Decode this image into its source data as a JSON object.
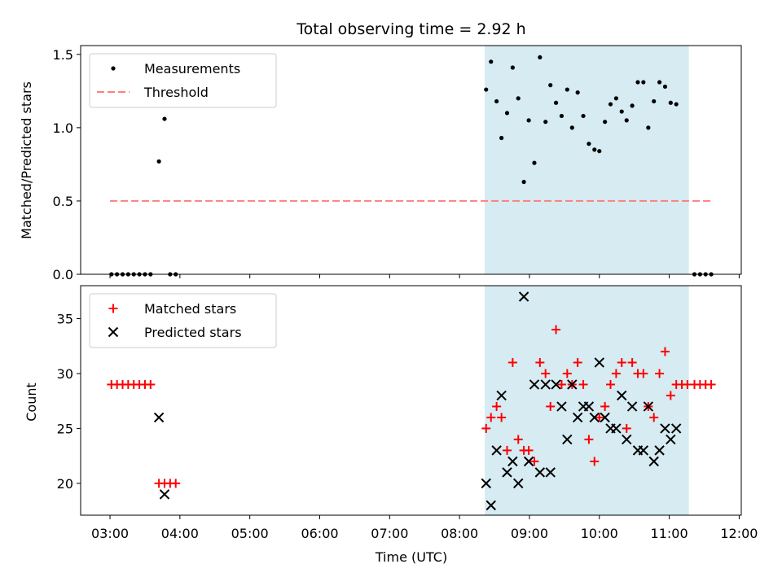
{
  "chart_data": {
    "title": "Total observing time = 2.92 h",
    "xlabel": "Time (UTC)",
    "x_unit": "hours UTC",
    "xlim": [
      2.58,
      12.03
    ],
    "x_ticks": [
      {
        "value": 3,
        "label": "03:00"
      },
      {
        "value": 4,
        "label": "04:00"
      },
      {
        "value": 5,
        "label": "05:00"
      },
      {
        "value": 6,
        "label": "06:00"
      },
      {
        "value": 7,
        "label": "07:00"
      },
      {
        "value": 8,
        "label": "08:00"
      },
      {
        "value": 9,
        "label": "09:00"
      },
      {
        "value": 10,
        "label": "10:00"
      },
      {
        "value": 11,
        "label": "11:00"
      },
      {
        "value": 12,
        "label": "12:00"
      }
    ],
    "shaded_interval": {
      "x": [
        8.36,
        11.28
      ],
      "color": "#add8e6"
    },
    "top": {
      "type": "scatter",
      "ylabel": "Matched/Predicted stars",
      "ylim": [
        0,
        1.56
      ],
      "y_ticks": [
        0.0,
        0.5,
        1.0,
        1.5
      ],
      "y_tick_labels": [
        "0.0",
        "0.5",
        "1.0",
        "1.5"
      ],
      "legend_position": "upper-left",
      "series": [
        {
          "name": "Measurements",
          "style": "dot",
          "color": "#000000",
          "points": [
            [
              3.02,
              0
            ],
            [
              3.1,
              0
            ],
            [
              3.18,
              0
            ],
            [
              3.26,
              0
            ],
            [
              3.34,
              0
            ],
            [
              3.42,
              0
            ],
            [
              3.5,
              0
            ],
            [
              3.58,
              0
            ],
            [
              3.7,
              0.77
            ],
            [
              3.78,
              1.06
            ],
            [
              3.86,
              0
            ],
            [
              3.94,
              0
            ],
            [
              8.38,
              1.26
            ],
            [
              8.45,
              1.45
            ],
            [
              8.53,
              1.18
            ],
            [
              8.6,
              0.93
            ],
            [
              8.68,
              1.1
            ],
            [
              8.76,
              1.41
            ],
            [
              8.84,
              1.2
            ],
            [
              8.92,
              0.63
            ],
            [
              8.99,
              1.05
            ],
            [
              9.07,
              0.76
            ],
            [
              9.15,
              1.48
            ],
            [
              9.23,
              1.04
            ],
            [
              9.3,
              1.29
            ],
            [
              9.38,
              1.17
            ],
            [
              9.46,
              1.08
            ],
            [
              9.54,
              1.26
            ],
            [
              9.61,
              1.0
            ],
            [
              9.69,
              1.24
            ],
            [
              9.77,
              1.08
            ],
            [
              9.85,
              0.89
            ],
            [
              9.93,
              0.85
            ],
            [
              10.0,
              0.84
            ],
            [
              10.08,
              1.04
            ],
            [
              10.16,
              1.16
            ],
            [
              10.24,
              1.2
            ],
            [
              10.32,
              1.11
            ],
            [
              10.39,
              1.05
            ],
            [
              10.47,
              1.15
            ],
            [
              10.55,
              1.31
            ],
            [
              10.63,
              1.31
            ],
            [
              10.7,
              1.0
            ],
            [
              10.78,
              1.18
            ],
            [
              10.86,
              1.31
            ],
            [
              10.94,
              1.28
            ],
            [
              11.02,
              1.17
            ],
            [
              11.1,
              1.16
            ],
            [
              11.36,
              0
            ],
            [
              11.44,
              0
            ],
            [
              11.52,
              0
            ],
            [
              11.6,
              0
            ]
          ]
        },
        {
          "name": "Threshold",
          "style": "dashed-line",
          "color": "#ff7f7f",
          "points": [
            [
              3.0,
              0.5
            ],
            [
              11.62,
              0.5
            ]
          ]
        }
      ]
    },
    "bottom": {
      "type": "scatter",
      "ylabel": "Count",
      "ylim": [
        17.1,
        38.0
      ],
      "y_ticks": [
        20,
        25,
        30,
        35
      ],
      "y_tick_labels": [
        "20",
        "25",
        "30",
        "35"
      ],
      "legend_position": "upper-left",
      "series": [
        {
          "name": "Matched stars",
          "marker": "plus",
          "color": "#ff0000",
          "points": [
            [
              3.02,
              29
            ],
            [
              3.1,
              29
            ],
            [
              3.18,
              29
            ],
            [
              3.26,
              29
            ],
            [
              3.34,
              29
            ],
            [
              3.42,
              29
            ],
            [
              3.5,
              29
            ],
            [
              3.58,
              29
            ],
            [
              3.7,
              20
            ],
            [
              3.78,
              20
            ],
            [
              3.86,
              20
            ],
            [
              3.94,
              20
            ],
            [
              8.38,
              25
            ],
            [
              8.45,
              26
            ],
            [
              8.53,
              27
            ],
            [
              8.6,
              26
            ],
            [
              8.68,
              23
            ],
            [
              8.76,
              31
            ],
            [
              8.84,
              24
            ],
            [
              8.92,
              23
            ],
            [
              8.99,
              23
            ],
            [
              9.07,
              22
            ],
            [
              9.15,
              31
            ],
            [
              9.23,
              30
            ],
            [
              9.3,
              27
            ],
            [
              9.38,
              34
            ],
            [
              9.46,
              29
            ],
            [
              9.54,
              30
            ],
            [
              9.61,
              29
            ],
            [
              9.69,
              31
            ],
            [
              9.77,
              29
            ],
            [
              9.85,
              24
            ],
            [
              9.93,
              22
            ],
            [
              10.0,
              26
            ],
            [
              10.08,
              27
            ],
            [
              10.16,
              29
            ],
            [
              10.24,
              30
            ],
            [
              10.32,
              31
            ],
            [
              10.39,
              25
            ],
            [
              10.47,
              31
            ],
            [
              10.55,
              30
            ],
            [
              10.63,
              30
            ],
            [
              10.7,
              27
            ],
            [
              10.78,
              26
            ],
            [
              10.86,
              30
            ],
            [
              10.94,
              32
            ],
            [
              11.02,
              28
            ],
            [
              11.1,
              29
            ],
            [
              11.18,
              29
            ],
            [
              11.26,
              29
            ],
            [
              11.36,
              29
            ],
            [
              11.44,
              29
            ],
            [
              11.52,
              29
            ],
            [
              11.6,
              29
            ]
          ]
        },
        {
          "name": "Predicted stars",
          "marker": "x",
          "color": "#000000",
          "points": [
            [
              3.7,
              26
            ],
            [
              3.78,
              19
            ],
            [
              8.38,
              20
            ],
            [
              8.45,
              18
            ],
            [
              8.53,
              23
            ],
            [
              8.6,
              28
            ],
            [
              8.68,
              21
            ],
            [
              8.76,
              22
            ],
            [
              8.84,
              20
            ],
            [
              8.92,
              37
            ],
            [
              8.99,
              22
            ],
            [
              9.07,
              29
            ],
            [
              9.15,
              21
            ],
            [
              9.23,
              29
            ],
            [
              9.3,
              21
            ],
            [
              9.38,
              29
            ],
            [
              9.46,
              27
            ],
            [
              9.54,
              24
            ],
            [
              9.61,
              29
            ],
            [
              9.69,
              26
            ],
            [
              9.77,
              27
            ],
            [
              9.85,
              27
            ],
            [
              9.93,
              26
            ],
            [
              10.0,
              31
            ],
            [
              10.08,
              26
            ],
            [
              10.16,
              25
            ],
            [
              10.24,
              25
            ],
            [
              10.32,
              28
            ],
            [
              10.39,
              24
            ],
            [
              10.47,
              27
            ],
            [
              10.55,
              23
            ],
            [
              10.63,
              23
            ],
            [
              10.7,
              27
            ],
            [
              10.78,
              22
            ],
            [
              10.86,
              23
            ],
            [
              10.94,
              25
            ],
            [
              11.02,
              24
            ],
            [
              11.1,
              25
            ]
          ]
        }
      ]
    }
  }
}
